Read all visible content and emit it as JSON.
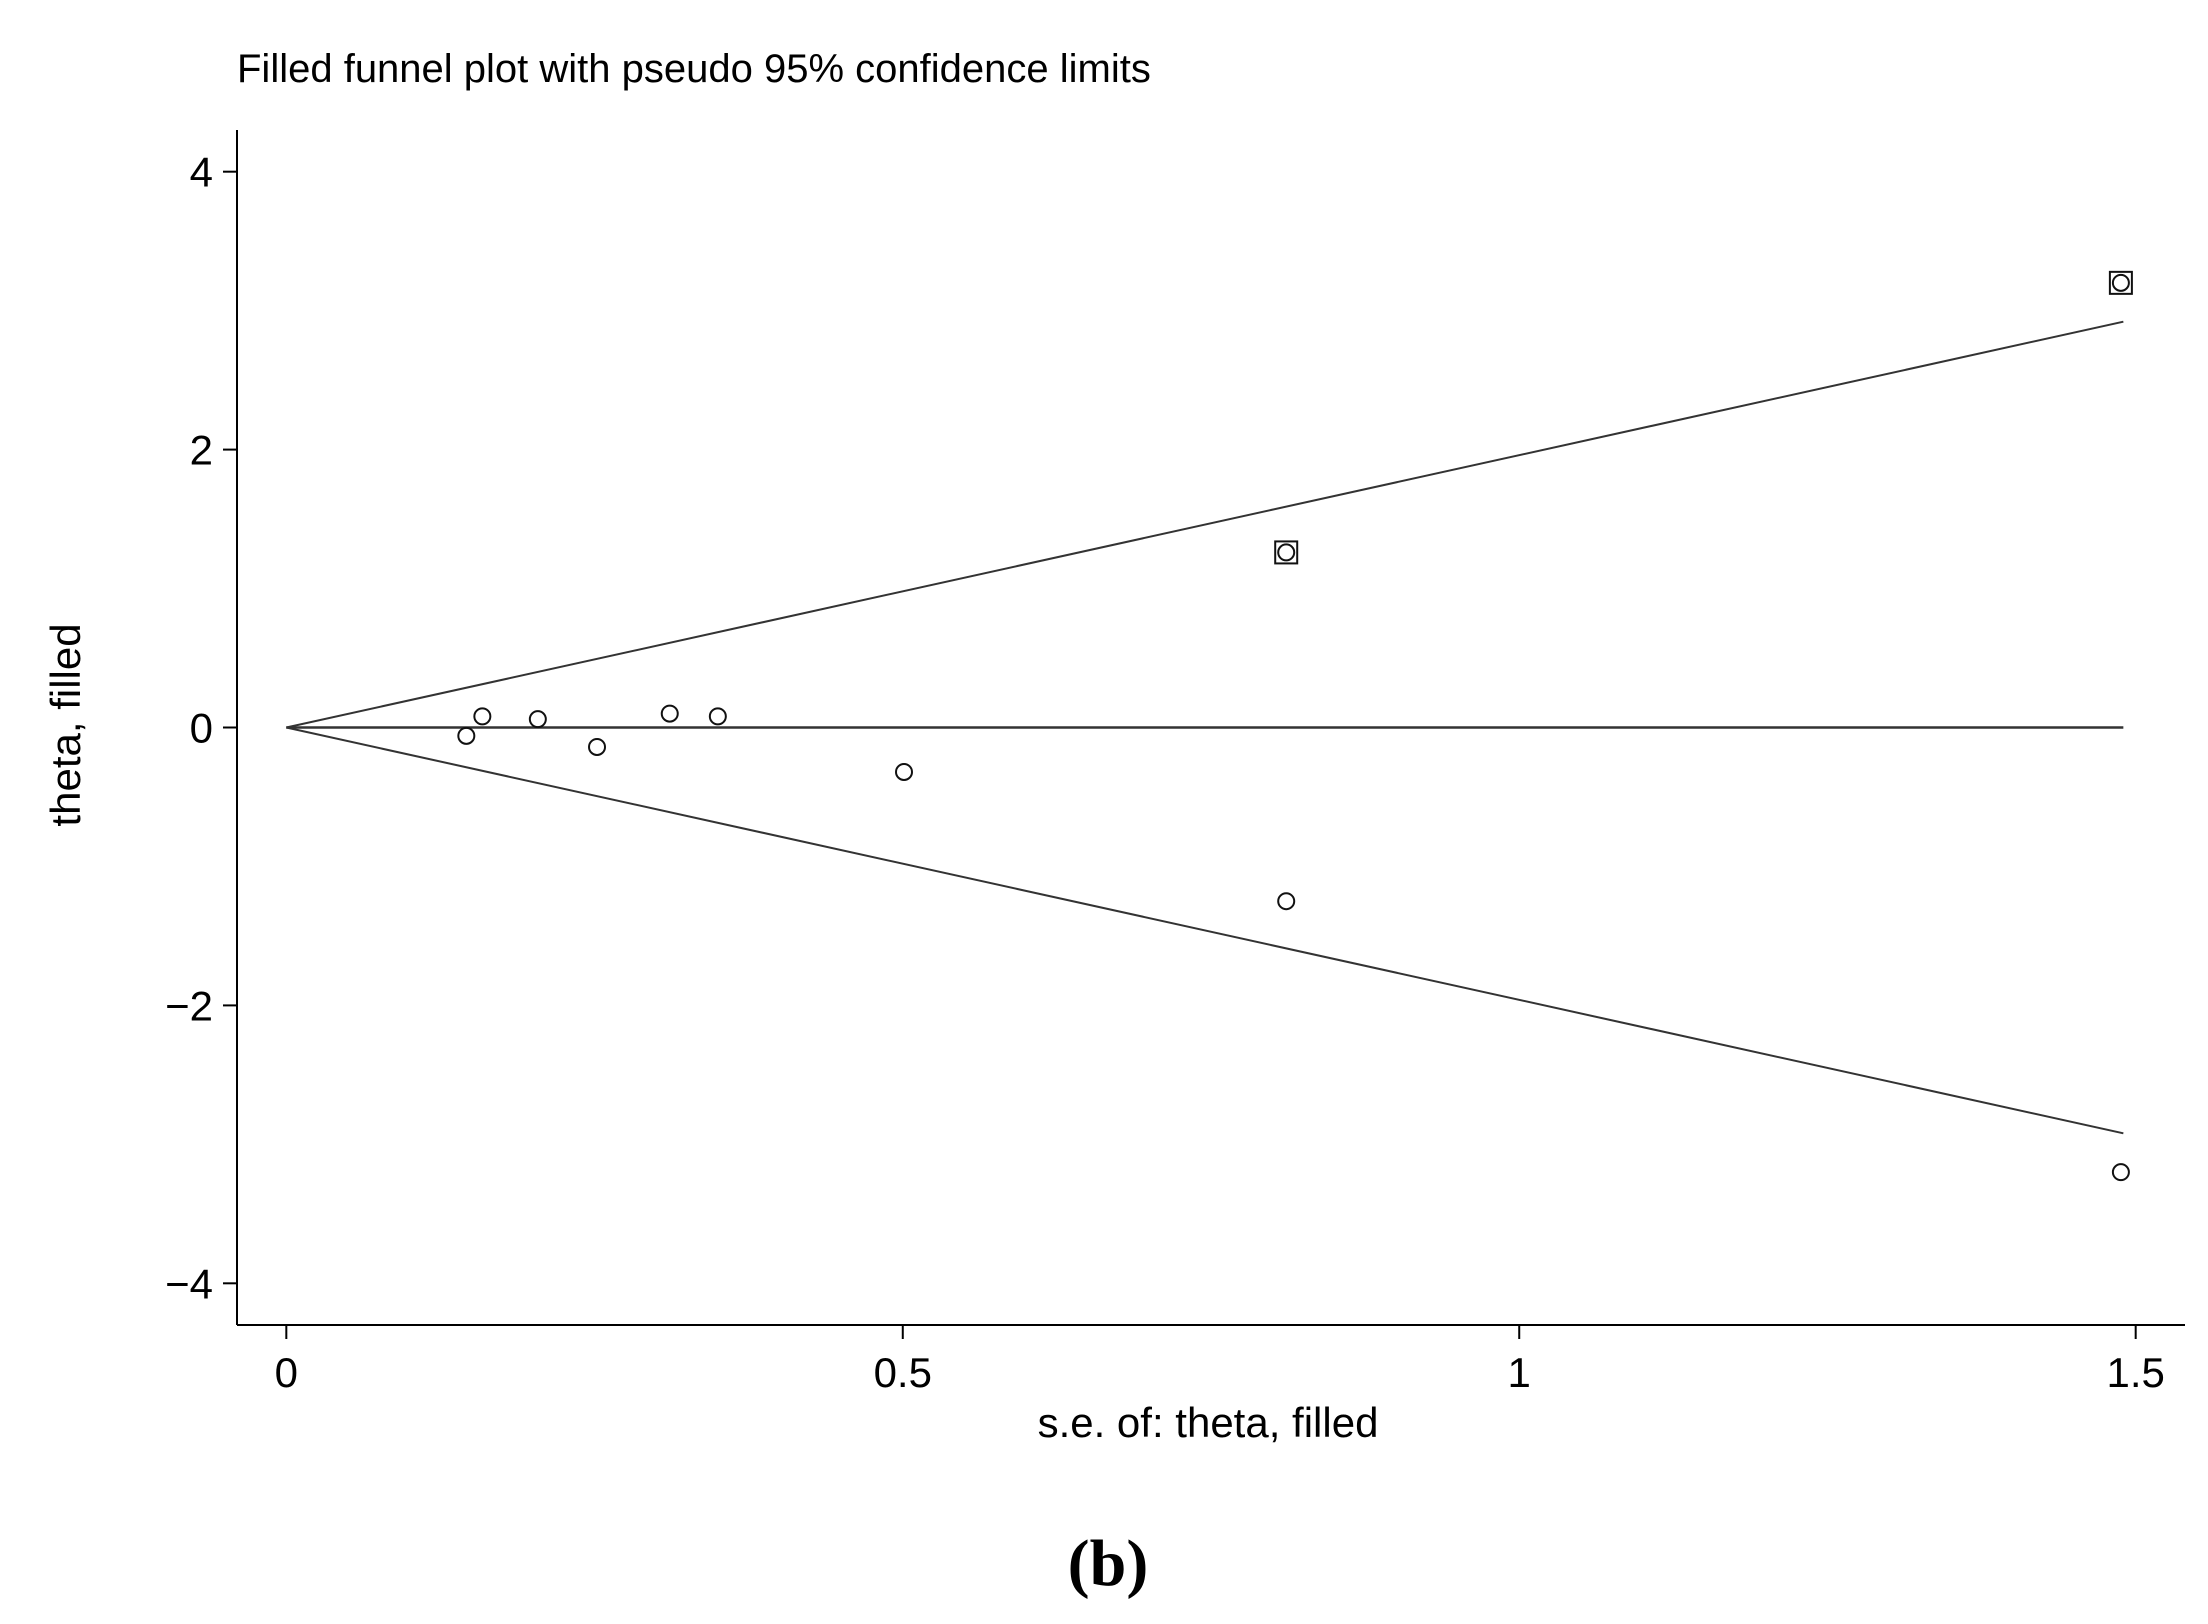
{
  "chart_data": {
    "type": "scatter",
    "title": "Filled funnel plot with pseudo 95% confidence limits",
    "xlabel": "s.e. of: theta, filled",
    "ylabel": "theta, filled",
    "panel_label": "(b)",
    "xlim": [
      -0.04,
      1.54
    ],
    "ylim": [
      -4.3,
      4.3
    ],
    "x_ticks": [
      {
        "value": 0,
        "label": "0"
      },
      {
        "value": 0.5,
        "label": "0.5"
      },
      {
        "value": 1,
        "label": "1"
      },
      {
        "value": 1.5,
        "label": "1.5"
      }
    ],
    "y_ticks": [
      {
        "value": 4,
        "label": "4"
      },
      {
        "value": 2,
        "label": "2"
      },
      {
        "value": 0,
        "label": "0"
      },
      {
        "value": -2,
        "label": "−2"
      },
      {
        "value": -4,
        "label": "−4"
      }
    ],
    "pooled_theta": 0,
    "limit_max_se": 1.49,
    "grid": false,
    "series": [
      {
        "marker": "circle",
        "points": [
          {
            "x": 0.146,
            "y": -0.06
          },
          {
            "x": 0.159,
            "y": 0.08
          },
          {
            "x": 0.204,
            "y": 0.06
          },
          {
            "x": 0.252,
            "y": -0.14
          },
          {
            "x": 0.311,
            "y": 0.1
          },
          {
            "x": 0.35,
            "y": 0.08
          },
          {
            "x": 0.501,
            "y": -0.32
          },
          {
            "x": 0.811,
            "y": 1.26
          },
          {
            "x": 0.811,
            "y": -1.25
          },
          {
            "x": 1.488,
            "y": 3.2
          },
          {
            "x": 1.488,
            "y": -3.2
          }
        ]
      },
      {
        "marker": "square",
        "points": [
          {
            "x": 0.811,
            "y": 1.26
          },
          {
            "x": 1.488,
            "y": 3.2
          }
        ]
      }
    ]
  }
}
